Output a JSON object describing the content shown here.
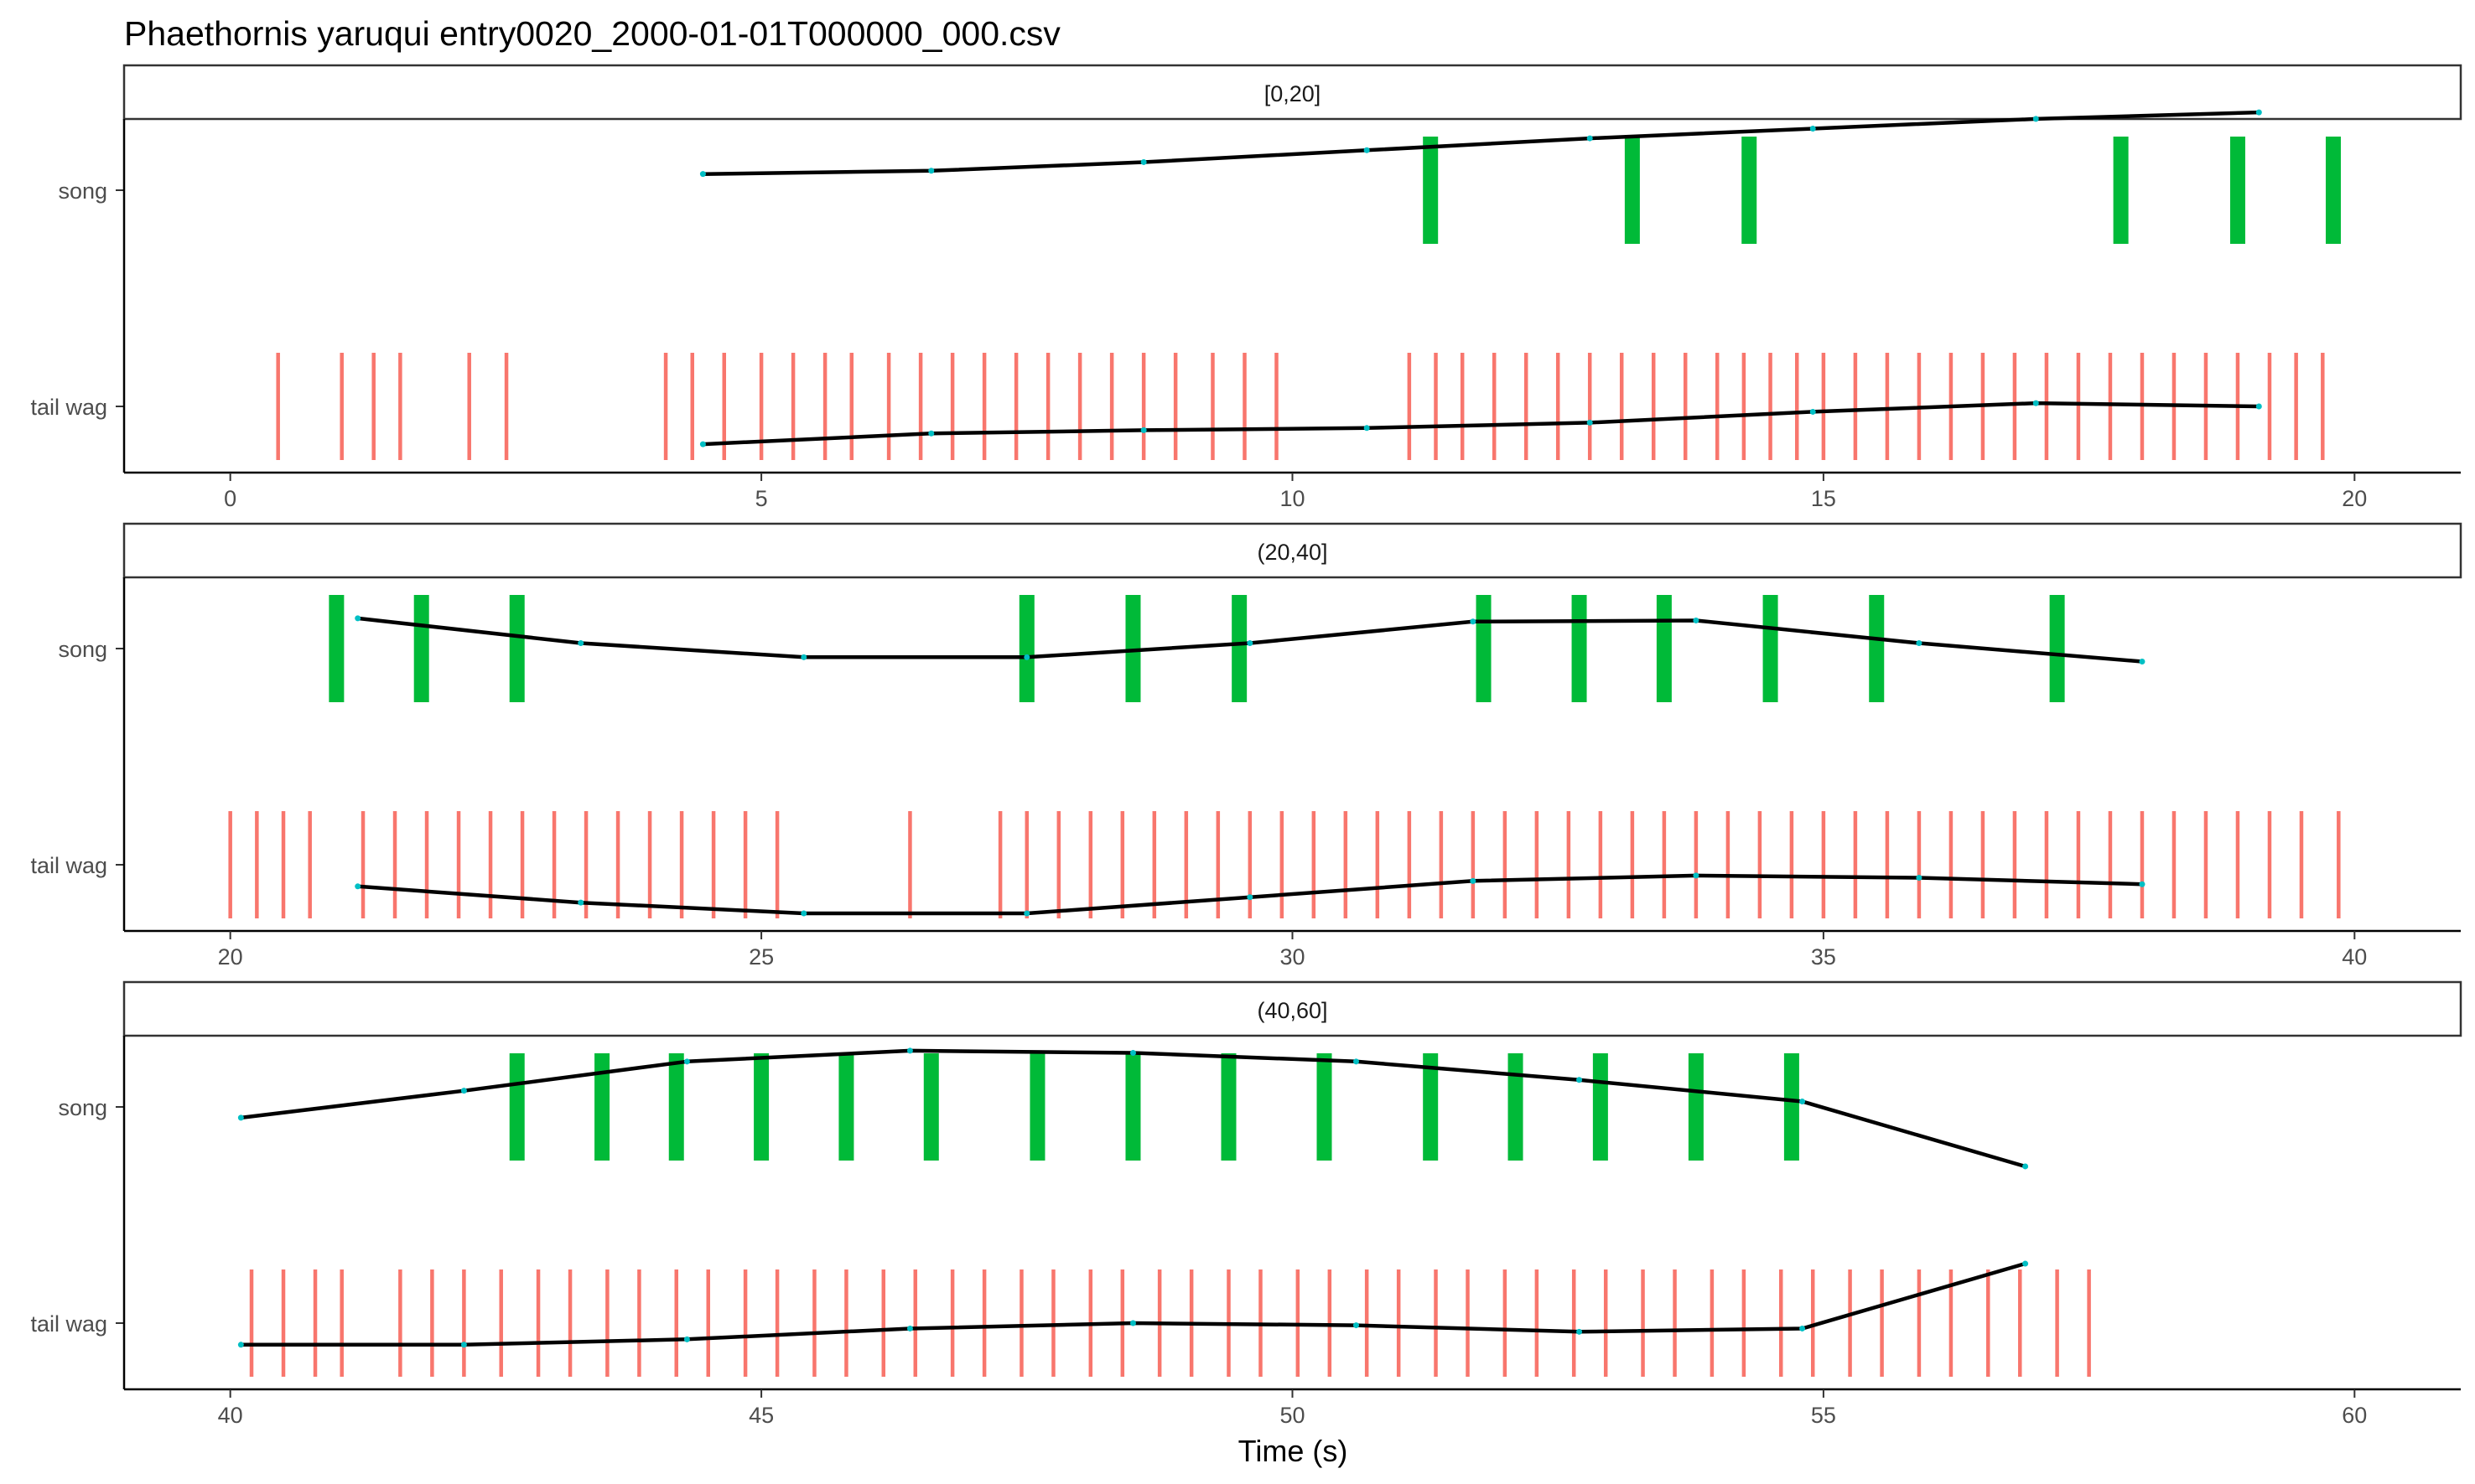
{
  "chart_data": {
    "type": "event-timeline",
    "title": "Phaethornis yaruqui   entry0020_2000-01-01T000000_000.csv",
    "xlabel": "Time (s)",
    "ylabel": "",
    "rows": [
      "song",
      "tail wag"
    ],
    "colors": {
      "song": "#00ba38",
      "tail wag": "#f8766d",
      "trend": "#000000",
      "trend_point": "#00bfc4"
    },
    "panels": [
      {
        "label": "[0,20]",
        "xlim": [
          -1,
          21
        ],
        "xticks": [
          0,
          5,
          10,
          15,
          20
        ],
        "song_events": [
          11.3,
          13.2,
          14.3,
          17.8,
          18.9,
          19.8
        ],
        "tail_wag_events": [
          0.45,
          1.05,
          1.35,
          1.6,
          2.25,
          2.6,
          4.1,
          4.35,
          4.65,
          5.0,
          5.3,
          5.6,
          5.85,
          6.2,
          6.5,
          6.8,
          7.1,
          7.4,
          7.7,
          8.0,
          8.3,
          8.6,
          8.9,
          9.25,
          9.55,
          9.85,
          11.1,
          11.35,
          11.6,
          11.9,
          12.2,
          12.5,
          12.8,
          13.1,
          13.4,
          13.7,
          14.0,
          14.25,
          14.5,
          14.75,
          15.0,
          15.3,
          15.6,
          15.9,
          16.2,
          16.5,
          16.8,
          17.1,
          17.4,
          17.7,
          18.0,
          18.3,
          18.6,
          18.9,
          19.2,
          19.45,
          19.7
        ],
        "song_trend": {
          "x": [
            4.45,
            6.6,
            8.6,
            10.7,
            12.8,
            14.9,
            17.0,
            19.1
          ],
          "y": [
            0.15,
            0.18,
            0.26,
            0.37,
            0.48,
            0.57,
            0.66,
            0.72
          ]
        },
        "tail_wag_trend": {
          "x": [
            4.45,
            6.6,
            8.6,
            10.7,
            12.8,
            14.9,
            17.0,
            19.1
          ],
          "y": [
            -0.35,
            -0.25,
            -0.22,
            -0.2,
            -0.15,
            -0.05,
            0.03,
            0.0
          ]
        }
      },
      {
        "label": "(20,40]",
        "xlim": [
          19,
          41
        ],
        "xticks": [
          20,
          25,
          30,
          35,
          40
        ],
        "song_events": [
          21.0,
          21.8,
          22.7,
          27.5,
          28.5,
          29.5,
          31.8,
          32.7,
          33.5,
          34.5,
          35.5,
          37.2
        ],
        "tail_wag_events": [
          20.0,
          20.25,
          20.5,
          20.75,
          21.25,
          21.55,
          21.85,
          22.15,
          22.45,
          22.75,
          23.05,
          23.35,
          23.65,
          23.95,
          24.25,
          24.55,
          24.85,
          25.15,
          26.4,
          27.25,
          27.5,
          27.8,
          28.1,
          28.4,
          28.7,
          29.0,
          29.3,
          29.6,
          29.9,
          30.2,
          30.5,
          30.8,
          31.1,
          31.4,
          31.7,
          32.0,
          32.3,
          32.6,
          32.9,
          33.2,
          33.5,
          33.8,
          34.1,
          34.4,
          34.7,
          35.0,
          35.3,
          35.6,
          35.9,
          36.2,
          36.5,
          36.8,
          37.1,
          37.4,
          37.7,
          38.0,
          38.3,
          38.6,
          38.9,
          39.2,
          39.5,
          39.85
        ],
        "song_trend": {
          "x": [
            21.2,
            23.3,
            25.4,
            27.5,
            29.6,
            31.7,
            33.8,
            35.9,
            38.0
          ],
          "y": [
            0.28,
            0.05,
            -0.08,
            -0.08,
            0.05,
            0.25,
            0.26,
            0.05,
            -0.12
          ]
        },
        "tail_wag_trend": {
          "x": [
            21.2,
            23.3,
            25.4,
            27.5,
            29.6,
            31.7,
            33.8,
            35.9,
            38.0
          ],
          "y": [
            -0.2,
            -0.35,
            -0.45,
            -0.45,
            -0.3,
            -0.15,
            -0.1,
            -0.12,
            -0.18
          ]
        }
      },
      {
        "label": "(40,60]",
        "xlim": [
          39,
          61
        ],
        "xticks": [
          40,
          45,
          50,
          55,
          60
        ],
        "song_events": [
          42.7,
          43.5,
          44.2,
          45.0,
          45.8,
          46.6,
          47.6,
          48.5,
          49.4,
          50.3,
          51.3,
          52.1,
          52.9,
          53.8,
          54.7
        ],
        "tail_wag_events": [
          40.2,
          40.5,
          40.8,
          41.05,
          41.6,
          41.9,
          42.2,
          42.55,
          42.9,
          43.2,
          43.55,
          43.85,
          44.2,
          44.5,
          44.85,
          45.15,
          45.5,
          45.8,
          46.15,
          46.45,
          46.8,
          47.1,
          47.45,
          47.75,
          48.1,
          48.4,
          48.75,
          49.05,
          49.4,
          49.7,
          50.05,
          50.35,
          50.7,
          51.0,
          51.35,
          51.65,
          52.0,
          52.3,
          52.65,
          52.95,
          53.3,
          53.6,
          53.95,
          54.25,
          54.6,
          54.9,
          55.25,
          55.55,
          55.9,
          56.2,
          56.55,
          56.85,
          57.2,
          57.5
        ],
        "song_trend": {
          "x": [
            40.1,
            42.2,
            44.3,
            46.4,
            48.5,
            50.6,
            52.7,
            54.8,
            56.9
          ],
          "y": [
            -0.1,
            0.15,
            0.42,
            0.52,
            0.5,
            0.42,
            0.25,
            0.05,
            -0.55
          ]
        },
        "tail_wag_trend": {
          "x": [
            40.1,
            42.2,
            44.3,
            46.4,
            48.5,
            50.6,
            52.7,
            54.8,
            56.9
          ],
          "y": [
            -0.2,
            -0.2,
            -0.15,
            -0.05,
            0.0,
            -0.02,
            -0.08,
            -0.05,
            0.55
          ]
        }
      }
    ]
  }
}
